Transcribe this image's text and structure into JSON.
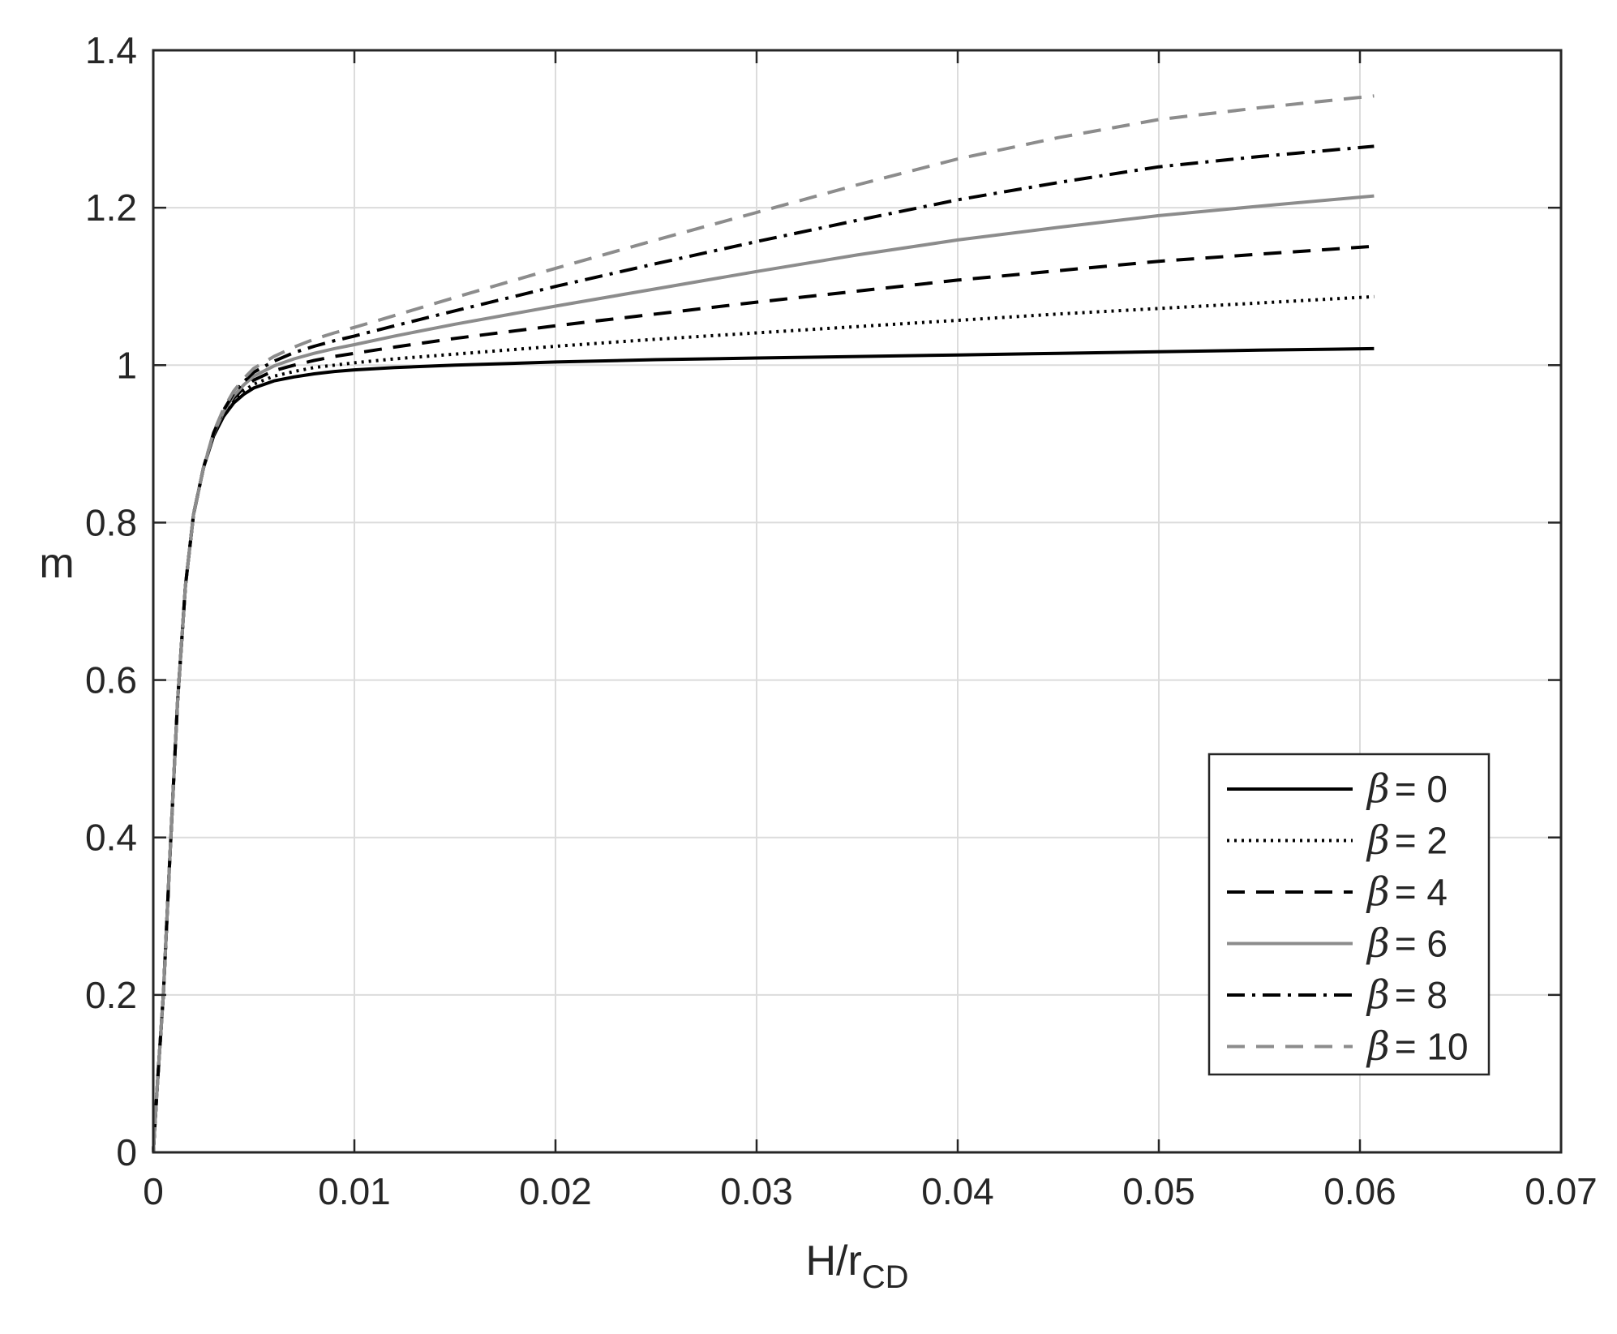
{
  "chart_data": {
    "type": "line",
    "xlabel": {
      "base": "H/r",
      "subscript": "CD"
    },
    "ylabel": "m",
    "xlim": [
      0,
      0.07
    ],
    "ylim": [
      0,
      1.4
    ],
    "x_ticks": [
      0,
      0.01,
      0.02,
      0.03,
      0.04,
      0.05,
      0.06,
      0.07
    ],
    "x_tick_labels": [
      "0",
      "0.01",
      "0.02",
      "0.03",
      "0.04",
      "0.05",
      "0.06",
      "0.07"
    ],
    "y_ticks": [
      0,
      0.2,
      0.4,
      0.6,
      0.8,
      1.0,
      1.2,
      1.4
    ],
    "y_tick_labels": [
      "0",
      "0.2",
      "0.4",
      "0.6",
      "0.8",
      "1",
      "1.2",
      "1.4"
    ],
    "grid": true,
    "legend_position": "bottom-right",
    "legend_symbol": "β",
    "x": [
      0,
      0.0002,
      0.0005,
      0.0008,
      0.0012,
      0.0016,
      0.002,
      0.0025,
      0.003,
      0.0035,
      0.004,
      0.0045,
      0.005,
      0.006,
      0.007,
      0.008,
      0.009,
      0.01,
      0.012,
      0.015,
      0.02,
      0.025,
      0.03,
      0.035,
      0.04,
      0.045,
      0.05,
      0.055,
      0.0607
    ],
    "series": [
      {
        "name": "β = 0",
        "value_label": "= 0",
        "color": "#000000",
        "dash": "solid",
        "width": 4,
        "values": [
          0,
          0.085,
          0.2,
          0.36,
          0.57,
          0.72,
          0.81,
          0.87,
          0.91,
          0.935,
          0.952,
          0.963,
          0.971,
          0.98,
          0.985,
          0.989,
          0.992,
          0.994,
          0.997,
          1.0,
          1.004,
          1.007,
          1.009,
          1.011,
          1.013,
          1.015,
          1.017,
          1.019,
          1.021
        ]
      },
      {
        "name": "β = 2",
        "value_label": "= 2",
        "color": "#000000",
        "dash": "dotted",
        "width": 4,
        "values": [
          0,
          0.085,
          0.2,
          0.36,
          0.57,
          0.72,
          0.81,
          0.87,
          0.911,
          0.937,
          0.955,
          0.967,
          0.976,
          0.986,
          0.992,
          0.997,
          1.0,
          1.003,
          1.008,
          1.014,
          1.024,
          1.033,
          1.041,
          1.049,
          1.057,
          1.065,
          1.072,
          1.079,
          1.087
        ]
      },
      {
        "name": "β = 4",
        "value_label": "= 4",
        "color": "#000000",
        "dash": "dashed",
        "width": 4,
        "values": [
          0,
          0.085,
          0.2,
          0.36,
          0.57,
          0.72,
          0.81,
          0.87,
          0.912,
          0.939,
          0.958,
          0.971,
          0.981,
          0.993,
          1.0,
          1.006,
          1.011,
          1.015,
          1.023,
          1.034,
          1.05,
          1.065,
          1.08,
          1.094,
          1.108,
          1.12,
          1.132,
          1.141,
          1.151
        ]
      },
      {
        "name": "β = 6",
        "value_label": "= 6",
        "color": "#8c8c8c",
        "dash": "solid",
        "width": 4,
        "values": [
          0,
          0.085,
          0.2,
          0.36,
          0.57,
          0.72,
          0.81,
          0.87,
          0.913,
          0.941,
          0.961,
          0.975,
          0.986,
          0.999,
          1.008,
          1.015,
          1.021,
          1.026,
          1.037,
          1.052,
          1.075,
          1.097,
          1.119,
          1.14,
          1.159,
          1.175,
          1.19,
          1.202,
          1.215
        ]
      },
      {
        "name": "β = 8",
        "value_label": "= 8",
        "color": "#000000",
        "dash": "dashdot",
        "width": 4,
        "values": [
          0,
          0.085,
          0.2,
          0.36,
          0.57,
          0.72,
          0.81,
          0.87,
          0.914,
          0.943,
          0.964,
          0.979,
          0.991,
          1.005,
          1.016,
          1.024,
          1.031,
          1.037,
          1.05,
          1.069,
          1.1,
          1.129,
          1.157,
          1.184,
          1.21,
          1.232,
          1.252,
          1.265,
          1.278
        ]
      },
      {
        "name": "β = 10",
        "value_label": "= 10",
        "color": "#8c8c8c",
        "dash": "dashed",
        "width": 4,
        "values": [
          0,
          0.085,
          0.2,
          0.36,
          0.57,
          0.72,
          0.81,
          0.87,
          0.915,
          0.945,
          0.967,
          0.983,
          0.996,
          1.011,
          1.023,
          1.033,
          1.041,
          1.048,
          1.063,
          1.086,
          1.123,
          1.159,
          1.194,
          1.229,
          1.262,
          1.289,
          1.312,
          1.327,
          1.342
        ]
      }
    ]
  }
}
